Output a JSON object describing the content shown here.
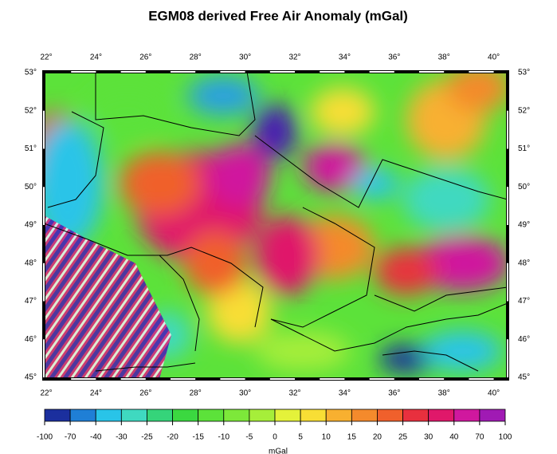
{
  "title": "EGM08 derived Free Air Anomaly (mGal)",
  "lon_labels": [
    "22°",
    "24°",
    "26°",
    "28°",
    "30°",
    "32°",
    "34°",
    "36°",
    "38°",
    "40°"
  ],
  "lat_labels": [
    "53°",
    "52°",
    "51°",
    "50°",
    "49°",
    "48°",
    "47°",
    "46°",
    "45°"
  ],
  "colorbar": {
    "labels": [
      "-100",
      "-70",
      "-40",
      "-30",
      "-25",
      "-20",
      "-15",
      "-10",
      "-5",
      "0",
      "5",
      "10",
      "15",
      "20",
      "25",
      "30",
      "40",
      "70",
      "100"
    ],
    "colors": [
      "#1b2f9e",
      "#1f7fd6",
      "#29c4e8",
      "#3fd9c0",
      "#35d47a",
      "#3bd840",
      "#5ce23a",
      "#7de83a",
      "#a6ee3a",
      "#e4f23a",
      "#f8de35",
      "#f8b030",
      "#f48a2c",
      "#f0602c",
      "#e8303e",
      "#e0186a",
      "#d0189e",
      "#a01ab4"
    ]
  },
  "unit": "mGal"
}
